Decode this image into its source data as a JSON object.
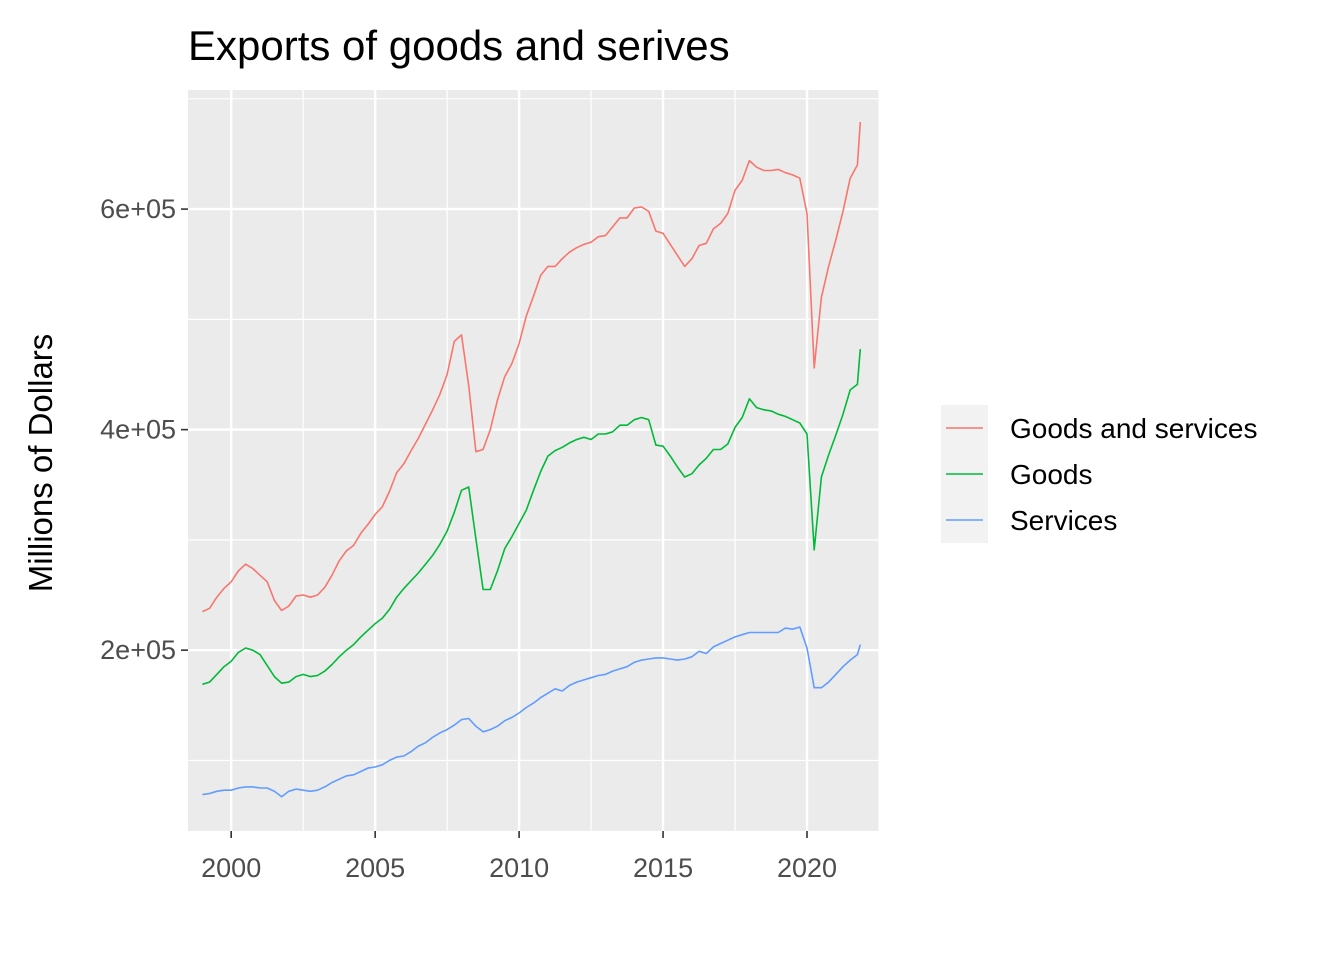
{
  "chart_data": {
    "type": "line",
    "title": "Exports of goods and serives",
    "xlabel": "",
    "ylabel": "Millions of Dollars",
    "xlim": [
      1998.5,
      2022.5
    ],
    "ylim": [
      36000,
      708000
    ],
    "x_ticks": [
      2000,
      2005,
      2010,
      2015,
      2020
    ],
    "x_tick_labels": [
      "2000",
      "2005",
      "2010",
      "2015",
      "2020"
    ],
    "y_ticks": [
      200000,
      400000,
      600000
    ],
    "y_tick_labels": [
      "2e+05",
      "4e+05",
      "6e+05"
    ],
    "grid": true,
    "legend_position": "right",
    "colors": {
      "panel_background": "#ebebeb",
      "grid": "#ffffff",
      "legend_key_background": "#f2f2f2"
    },
    "x": [
      1999.0,
      1999.25,
      1999.5,
      1999.75,
      2000.0,
      2000.25,
      2000.5,
      2000.75,
      2001.0,
      2001.25,
      2001.5,
      2001.75,
      2002.0,
      2002.25,
      2002.5,
      2002.75,
      2003.0,
      2003.25,
      2003.5,
      2003.75,
      2004.0,
      2004.25,
      2004.5,
      2004.75,
      2005.0,
      2005.25,
      2005.5,
      2005.75,
      2006.0,
      2006.25,
      2006.5,
      2006.75,
      2007.0,
      2007.25,
      2007.5,
      2007.75,
      2008.0,
      2008.25,
      2008.5,
      2008.75,
      2009.0,
      2009.25,
      2009.5,
      2009.75,
      2010.0,
      2010.25,
      2010.5,
      2010.75,
      2011.0,
      2011.25,
      2011.5,
      2011.75,
      2012.0,
      2012.25,
      2012.5,
      2012.75,
      2013.0,
      2013.25,
      2013.5,
      2013.75,
      2014.0,
      2014.25,
      2014.5,
      2014.75,
      2015.0,
      2015.25,
      2015.5,
      2015.75,
      2016.0,
      2016.25,
      2016.5,
      2016.75,
      2017.0,
      2017.25,
      2017.5,
      2017.75,
      2018.0,
      2018.25,
      2018.5,
      2018.75,
      2019.0,
      2019.25,
      2019.5,
      2019.75,
      2020.0,
      2020.25,
      2020.5,
      2020.75,
      2021.0,
      2021.25,
      2021.5,
      2021.75
    ],
    "series": [
      {
        "name": "Goods and services",
        "color": "#f8766d",
        "values": [
          235000,
          238000,
          248000,
          256000,
          262000,
          272000,
          278000,
          274000,
          268000,
          262000,
          245000,
          236000,
          240000,
          249000,
          250000,
          248000,
          250000,
          257000,
          268000,
          281000,
          290000,
          295000,
          306000,
          314000,
          323000,
          330000,
          344000,
          361000,
          369000,
          381000,
          392000,
          405000,
          418000,
          432000,
          450000,
          480000,
          486000,
          440000,
          380000,
          382000,
          400000,
          427000,
          448000,
          460000,
          478000,
          503000,
          521000,
          540000,
          548000,
          548000,
          555000,
          561000,
          565000,
          568000,
          570000,
          575000,
          576000,
          584000,
          592000,
          592000,
          601000,
          602000,
          598000,
          580000,
          578000,
          568000,
          558000,
          548000,
          555000,
          567000,
          569000,
          582000,
          587000,
          596000,
          617000,
          626000,
          644000,
          638000,
          635000,
          635000,
          636000,
          633000,
          631000,
          628000,
          596000,
          456000,
          520000,
          548000,
          572000,
          598000,
          628000,
          640000
        ],
        "last_point": [
          2021.85,
          679000
        ]
      },
      {
        "name": "Goods",
        "color": "#00ba38",
        "values": [
          169000,
          171000,
          178000,
          185000,
          190000,
          198000,
          202000,
          200000,
          196000,
          186000,
          176000,
          170000,
          171000,
          176000,
          178000,
          176000,
          177000,
          181000,
          187000,
          194000,
          200000,
          205000,
          212000,
          218000,
          224000,
          229000,
          237000,
          248000,
          256000,
          263000,
          270000,
          278000,
          286000,
          296000,
          308000,
          325000,
          345000,
          348000,
          301000,
          255000,
          255000,
          272000,
          292000,
          303000,
          315000,
          327000,
          345000,
          362000,
          376000,
          381000,
          384000,
          388000,
          391000,
          393000,
          391000,
          396000,
          396000,
          398000,
          404000,
          404000,
          409000,
          411000,
          409000,
          386000,
          385000,
          376000,
          366000,
          357000,
          360000,
          368000,
          374000,
          382000,
          382000,
          387000,
          402000,
          411000,
          428000,
          420000,
          418000,
          417000,
          414000,
          412000,
          409000,
          406000,
          396000,
          291000,
          357000,
          377000,
          395000,
          414000,
          436000,
          441000
        ],
        "last_point": [
          2021.85,
          473000
        ]
      },
      {
        "name": "Services",
        "color": "#619cff",
        "values": [
          69000,
          70000,
          72000,
          73000,
          73000,
          75000,
          76000,
          76000,
          75000,
          75000,
          72000,
          67000,
          72000,
          74000,
          73000,
          72000,
          73000,
          76000,
          80000,
          83000,
          86000,
          87000,
          90000,
          93000,
          94000,
          96000,
          100000,
          103000,
          104000,
          108000,
          113000,
          116000,
          121000,
          125000,
          128000,
          132000,
          137000,
          138000,
          131000,
          126000,
          128000,
          131000,
          136000,
          139000,
          143000,
          148000,
          152000,
          157000,
          161000,
          165000,
          163000,
          168000,
          171000,
          173000,
          175000,
          177000,
          178000,
          181000,
          183000,
          185000,
          189000,
          191000,
          192000,
          193000,
          193000,
          192000,
          191000,
          192000,
          194000,
          199000,
          197000,
          203000,
          206000,
          209000,
          212000,
          214000,
          216000,
          216000,
          216000,
          216000,
          216000,
          220000,
          219000,
          221000,
          202000,
          166000,
          166000,
          171000,
          178000,
          185000,
          191000,
          196000
        ],
        "last_point": [
          2021.85,
          205000
        ]
      }
    ]
  }
}
